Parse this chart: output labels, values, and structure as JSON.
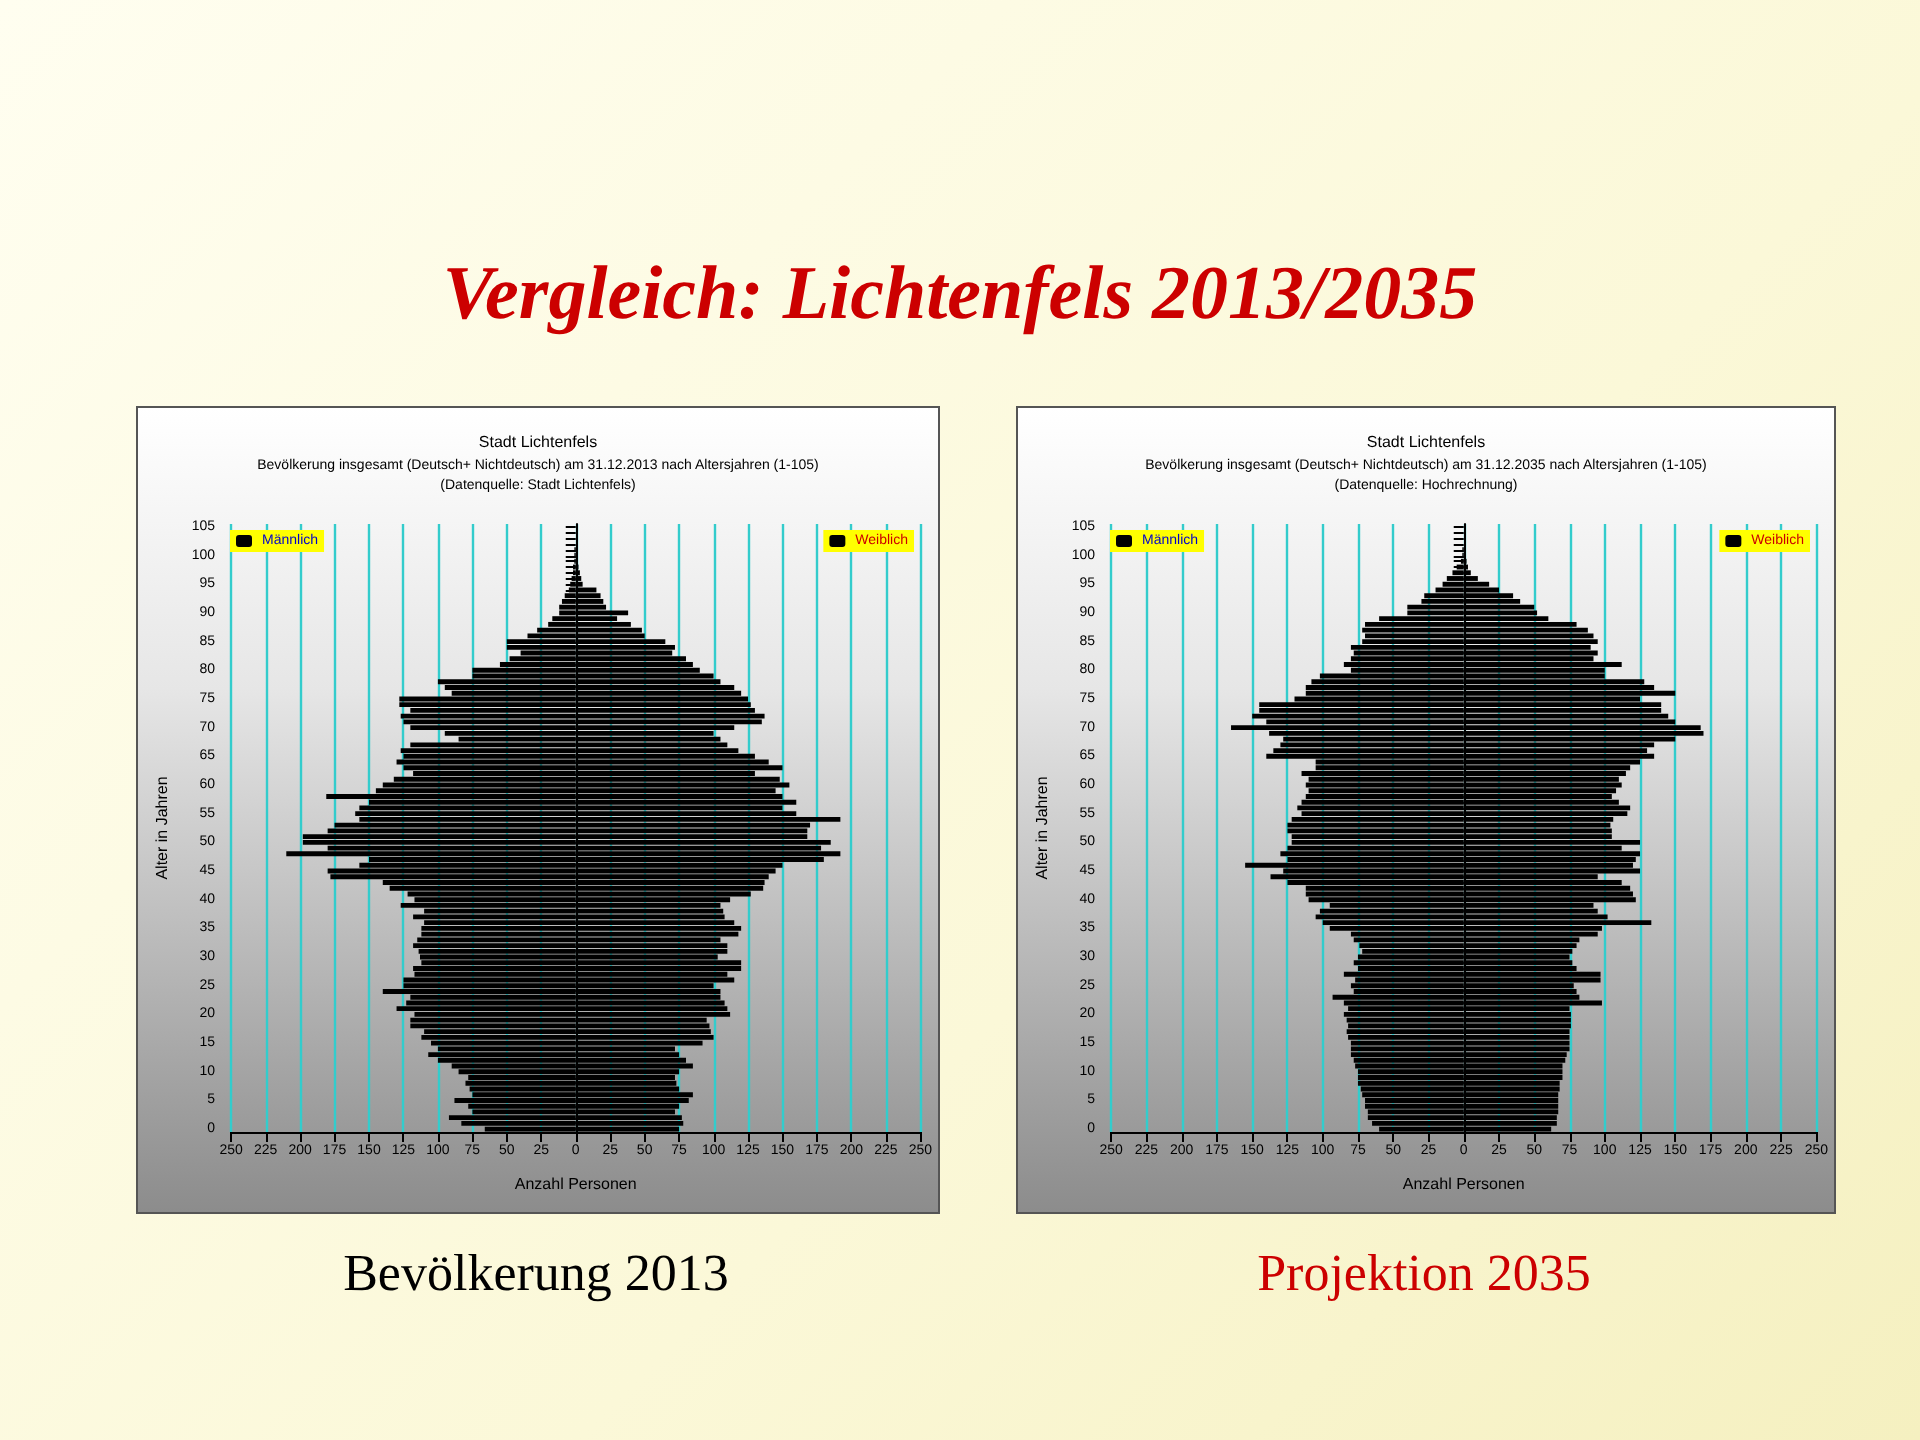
{
  "chart_data": [
    {
      "type": "bar",
      "orientation": "horizontal",
      "title": "Stadt Lichtenfels",
      "subtitle": "Bevölkerung insgesamt (Deutsch+ Nichtdeutsch) am 31.12.2013 nach Altersjahren (1-105)\n(Datenquelle: Stadt Lichtenfels)",
      "xlabel": "Anzahl Personen",
      "ylabel": "Alter in Jahren",
      "annotations": [
        "Vergleich: Lichtenfels 2013/2035",
        "Bevölkerung 2013"
      ],
      "categories": [
        "105",
        null,
        null,
        null,
        null,
        "100",
        null,
        null,
        null,
        null,
        "95",
        null,
        null,
        null,
        null,
        "90",
        null,
        null,
        null,
        null,
        "85",
        null,
        null,
        null,
        null,
        "80",
        null,
        null,
        null,
        null,
        "75",
        null,
        null,
        null,
        null,
        "70",
        null,
        null,
        null,
        null,
        "65",
        null,
        null,
        null,
        null,
        "60",
        null,
        null,
        null,
        null,
        "55",
        null,
        null,
        null,
        null,
        "50",
        null,
        null,
        null,
        null,
        "45",
        null,
        null,
        null,
        null,
        "40",
        null,
        null,
        null,
        null,
        "35",
        null,
        null,
        null,
        null,
        "30",
        null,
        null,
        null,
        null,
        "25",
        null,
        null,
        null,
        null,
        "20",
        null,
        null,
        null,
        null,
        "15",
        null,
        null,
        null,
        null,
        "10",
        null,
        null,
        null,
        null,
        "5",
        null,
        null,
        null,
        null,
        "0"
      ],
      "series": [
        {
          "name": "Männlich",
          "color": "#000000",
          "values": [
            0,
            0,
            0,
            0,
            -1,
            -1,
            -1,
            -2,
            -2,
            -3,
            -4,
            -5,
            -8,
            -10,
            -12,
            -12,
            -17,
            -20,
            -28,
            -35,
            -50,
            -50,
            -40,
            -48,
            -55,
            -75,
            -75,
            -100,
            -95,
            -90,
            -128,
            -128,
            -120,
            -127,
            -125,
            -120,
            -95,
            -85,
            -120,
            -127,
            -125,
            -130,
            -125,
            -118,
            -132,
            -140,
            -145,
            -181,
            -150,
            -157,
            -160,
            -157,
            -175,
            -180,
            -198,
            -198,
            -180,
            -210,
            -150,
            -157,
            -180,
            -178,
            -140,
            -135,
            -122,
            -117,
            -127,
            -110,
            -118,
            -110,
            -112,
            -112,
            -115,
            -118,
            -114,
            -113,
            -112,
            -118,
            -117,
            -125,
            -125,
            -140,
            -120,
            -123,
            -130,
            -117,
            -120,
            -120,
            -110,
            -112,
            -105,
            -100,
            -107,
            -100,
            -90,
            -85,
            -78,
            -80,
            -77,
            -75,
            -88,
            -78,
            -75,
            -92,
            -83,
            -66
          ]
        },
        {
          "name": "Weiblich",
          "color": "#000000",
          "values": [
            0,
            0,
            0,
            0,
            1,
            1,
            1,
            2,
            3,
            4,
            5,
            15,
            18,
            20,
            22,
            38,
            30,
            40,
            48,
            50,
            65,
            72,
            70,
            80,
            85,
            90,
            100,
            105,
            115,
            120,
            125,
            127,
            130,
            137,
            135,
            115,
            100,
            105,
            110,
            118,
            130,
            140,
            150,
            130,
            148,
            155,
            145,
            150,
            160,
            150,
            160,
            192,
            170,
            168,
            168,
            185,
            178,
            192,
            180,
            150,
            145,
            140,
            137,
            136,
            127,
            112,
            105,
            107,
            108,
            115,
            120,
            118,
            105,
            110,
            110,
            103,
            120,
            120,
            110,
            115,
            100,
            105,
            105,
            108,
            110,
            112,
            95,
            97,
            98,
            100,
            92,
            72,
            75,
            80,
            85,
            75,
            72,
            73,
            75,
            85,
            82,
            75,
            72,
            77,
            78,
            75
          ]
        }
      ],
      "xlim": [
        -250,
        250
      ],
      "xticks": [
        {
          "value": -250,
          "label": "250"
        },
        {
          "value": -225,
          "label": "225"
        },
        {
          "value": -200,
          "label": "200"
        },
        {
          "value": -175,
          "label": "175"
        },
        {
          "value": -150,
          "label": "150"
        },
        {
          "value": -125,
          "label": "125"
        },
        {
          "value": -100,
          "label": "100"
        },
        {
          "value": -75,
          "label": "75"
        },
        {
          "value": -50,
          "label": "50"
        },
        {
          "value": -25,
          "label": "25"
        },
        0,
        25,
        50,
        75,
        100,
        125,
        150,
        175,
        200,
        225,
        250
      ],
      "grid": "x",
      "stacked": true,
      "legend": "top"
    },
    {
      "type": "bar",
      "orientation": "horizontal",
      "title": "Stadt Lichtenfels",
      "subtitle": "Bevölkerung insgesamt (Deutsch+ Nichtdeutsch) am 31.12.2035 nach Altersjahren (1-105)\n(Datenquelle: Hochrechnung)",
      "xlabel": "Anzahl Personen",
      "ylabel": "Alter in Jahren",
      "annotations": [
        "Projektion 2035"
      ],
      "categories": [
        "105",
        null,
        null,
        null,
        null,
        "100",
        null,
        null,
        null,
        null,
        "95",
        null,
        null,
        null,
        null,
        "90",
        null,
        null,
        null,
        null,
        "85",
        null,
        null,
        null,
        null,
        "80",
        null,
        null,
        null,
        null,
        "75",
        null,
        null,
        null,
        null,
        "70",
        null,
        null,
        null,
        null,
        "65",
        null,
        null,
        null,
        null,
        "60",
        null,
        null,
        null,
        null,
        "55",
        null,
        null,
        null,
        null,
        "50",
        null,
        null,
        null,
        null,
        "45",
        null,
        null,
        null,
        null,
        "40",
        null,
        null,
        null,
        null,
        "35",
        null,
        null,
        null,
        null,
        "30",
        null,
        null,
        null,
        null,
        "25",
        null,
        null,
        null,
        null,
        "20",
        null,
        null,
        null,
        null,
        "15",
        null,
        null,
        null,
        null,
        "10",
        null,
        null,
        null,
        null,
        "5",
        null,
        null,
        null,
        null,
        "0"
      ],
      "series": [
        {
          "name": "Männlich",
          "color": "#000000",
          "values": [
            0,
            0,
            0,
            0,
            -1,
            -1,
            -2,
            -5,
            -8,
            -12,
            -15,
            -20,
            -28,
            -30,
            -40,
            -40,
            -60,
            -70,
            -72,
            -70,
            -72,
            -80,
            -78,
            -80,
            -85,
            -80,
            -102,
            -108,
            -112,
            -112,
            -120,
            -145,
            -145,
            -150,
            -140,
            -165,
            -138,
            -128,
            -130,
            -135,
            -140,
            -105,
            -105,
            -115,
            -110,
            -112,
            -110,
            -112,
            -115,
            -118,
            -115,
            -122,
            -125,
            -125,
            -122,
            -122,
            -125,
            -130,
            -125,
            -155,
            -128,
            -137,
            -125,
            -112,
            -112,
            -110,
            -95,
            -102,
            -105,
            -100,
            -95,
            -80,
            -78,
            -74,
            -72,
            -75,
            -78,
            -75,
            -85,
            -77,
            -80,
            -78,
            -93,
            -85,
            -82,
            -85,
            -83,
            -82,
            -83,
            -82,
            -80,
            -80,
            -80,
            -78,
            -77,
            -75,
            -75,
            -75,
            -73,
            -72,
            -70,
            -70,
            -68,
            -68,
            -65,
            -60
          ]
        },
        {
          "name": "Weiblich",
          "color": "#000000",
          "values": [
            0,
            0,
            0,
            0,
            1,
            1,
            2,
            3,
            5,
            10,
            18,
            25,
            35,
            40,
            50,
            52,
            60,
            80,
            88,
            92,
            95,
            90,
            95,
            92,
            112,
            100,
            100,
            128,
            135,
            150,
            125,
            140,
            140,
            145,
            150,
            168,
            170,
            150,
            135,
            130,
            135,
            125,
            118,
            115,
            110,
            112,
            108,
            105,
            110,
            118,
            116,
            106,
            104,
            105,
            105,
            125,
            112,
            125,
            122,
            120,
            125,
            95,
            112,
            118,
            120,
            122,
            92,
            95,
            102,
            133,
            98,
            95,
            82,
            80,
            77,
            75,
            77,
            80,
            97,
            97,
            78,
            80,
            82,
            98,
            75,
            76,
            76,
            76,
            75,
            75,
            75,
            75,
            73,
            72,
            70,
            70,
            70,
            68,
            68,
            67,
            67,
            67,
            67,
            66,
            66,
            62
          ]
        }
      ],
      "xlim": [
        -250,
        250
      ],
      "xticks": [
        {
          "value": -250,
          "label": "250"
        },
        {
          "value": -225,
          "label": "225"
        },
        {
          "value": -200,
          "label": "200"
        },
        {
          "value": -175,
          "label": "175"
        },
        {
          "value": -150,
          "label": "150"
        },
        {
          "value": -125,
          "label": "125"
        },
        {
          "value": -100,
          "label": "100"
        },
        {
          "value": -75,
          "label": "75"
        },
        {
          "value": -50,
          "label": "50"
        },
        {
          "value": -25,
          "label": "25"
        },
        0,
        25,
        50,
        75,
        100,
        125,
        150,
        175,
        200,
        225,
        250
      ],
      "grid": "x",
      "stacked": true,
      "legend": "top"
    }
  ]
}
